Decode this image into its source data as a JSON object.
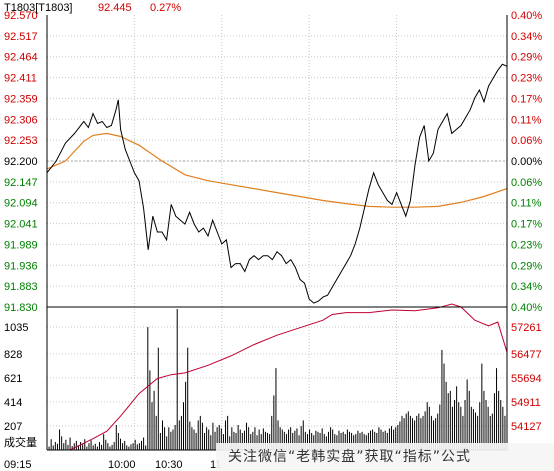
{
  "header": {
    "symbol": "T1803[T1803]",
    "last_price": "92.445",
    "change_pct": "0.27%"
  },
  "watermark": "关注微信“老韩实盘”获取“指标”公式",
  "colors": {
    "up": "#d00000",
    "down": "#008000",
    "neutral": "#000000",
    "price_line": "#000000",
    "avg_line": "#e08020",
    "oi_line": "#c00030",
    "volume_bar": "#000000",
    "grid": "#c8c8c8"
  },
  "chart_data": [
    {
      "type": "line",
      "panel": "price",
      "ylim": [
        91.83,
        92.57
      ],
      "y_ticks_left": [
        "92.570",
        "92.517",
        "92.464",
        "92.411",
        "92.359",
        "92.306",
        "92.253",
        "92.200",
        "92.147",
        "92.094",
        "92.041",
        "91.989",
        "91.936",
        "91.883",
        "91.830"
      ],
      "y_ticks_right": [
        "0.40%",
        "0.34%",
        "0.29%",
        "0.23%",
        "0.17%",
        "0.11%",
        "0.06%",
        "0.00%",
        "0.06%",
        "0.11%",
        "0.17%",
        "0.23%",
        "0.29%",
        "0.34%",
        "0.40%"
      ],
      "series": [
        {
          "label": "price",
          "x": [
            0,
            0.02,
            0.04,
            0.06,
            0.08,
            0.09,
            0.1,
            0.11,
            0.12,
            0.13,
            0.14,
            0.15,
            0.155,
            0.16,
            0.17,
            0.18,
            0.19,
            0.2,
            0.21,
            0.22,
            0.23,
            0.24,
            0.25,
            0.26,
            0.27,
            0.28,
            0.29,
            0.3,
            0.31,
            0.32,
            0.33,
            0.34,
            0.35,
            0.36,
            0.37,
            0.38,
            0.39,
            0.4,
            0.41,
            0.42,
            0.43,
            0.44,
            0.45,
            0.46,
            0.47,
            0.48,
            0.49,
            0.5,
            0.51,
            0.52,
            0.53,
            0.54,
            0.55,
            0.56,
            0.57,
            0.58,
            0.59,
            0.6,
            0.61,
            0.62,
            0.63,
            0.64,
            0.65,
            0.66,
            0.67,
            0.68,
            0.69,
            0.7,
            0.71,
            0.72,
            0.73,
            0.74,
            0.75,
            0.76,
            0.77,
            0.78,
            0.79,
            0.8,
            0.81,
            0.82,
            0.83,
            0.84,
            0.85,
            0.86,
            0.87,
            0.88,
            0.89,
            0.9,
            0.91,
            0.92,
            0.93,
            0.94,
            0.95,
            0.96,
            0.97,
            0.98,
            0.99,
            1.0
          ],
          "y": [
            92.17,
            92.2,
            92.245,
            92.27,
            92.3,
            92.285,
            92.32,
            92.295,
            92.3,
            92.285,
            92.29,
            92.33,
            92.355,
            92.28,
            92.23,
            92.2,
            92.17,
            92.15,
            92.08,
            91.975,
            92.06,
            92.02,
            92.02,
            92.0,
            92.09,
            92.06,
            92.05,
            92.04,
            92.07,
            92.04,
            92.02,
            92.03,
            92.01,
            92.05,
            92.02,
            91.99,
            92.0,
            91.93,
            91.94,
            91.94,
            91.92,
            91.95,
            91.96,
            91.95,
            91.96,
            91.96,
            91.95,
            91.97,
            91.96,
            91.94,
            91.95,
            91.93,
            91.9,
            91.89,
            91.85,
            91.84,
            91.845,
            91.855,
            91.86,
            91.88,
            91.9,
            91.92,
            91.94,
            91.96,
            91.99,
            92.03,
            92.08,
            92.13,
            92.17,
            92.14,
            92.12,
            92.1,
            92.09,
            92.12,
            92.09,
            92.06,
            92.1,
            92.19,
            92.26,
            92.29,
            92.2,
            92.22,
            92.28,
            92.3,
            92.32,
            92.27,
            92.28,
            92.29,
            92.31,
            92.33,
            92.36,
            92.38,
            92.35,
            92.39,
            92.41,
            92.43,
            92.445,
            92.44
          ]
        },
        {
          "label": "average",
          "x": [
            0,
            0.04,
            0.08,
            0.1,
            0.13,
            0.16,
            0.2,
            0.25,
            0.3,
            0.35,
            0.4,
            0.45,
            0.5,
            0.55,
            0.6,
            0.65,
            0.7,
            0.75,
            0.8,
            0.85,
            0.9,
            0.95,
            1.0
          ],
          "y": [
            92.18,
            92.2,
            92.25,
            92.265,
            92.27,
            92.262,
            92.24,
            92.2,
            92.165,
            92.15,
            92.14,
            92.13,
            92.12,
            92.11,
            92.1,
            92.092,
            92.085,
            92.083,
            92.083,
            92.085,
            92.095,
            92.11,
            92.13
          ]
        }
      ]
    },
    {
      "type": "bar",
      "panel": "volume",
      "ylim": [
        0,
        1240
      ],
      "y_ticks_left": [
        "1035",
        "828",
        "621",
        "414",
        "207",
        "成交量"
      ],
      "y_ticks_right": [
        "57261",
        "56477",
        "55694",
        "54911",
        "54127"
      ],
      "x_ticks": [
        "09:15",
        "10:00",
        "10:30",
        "11"
      ],
      "values": [
        30,
        95,
        40,
        70,
        55,
        180,
        120,
        60,
        90,
        45,
        110,
        35,
        60,
        80,
        40,
        70,
        50,
        95,
        30,
        60,
        85,
        40,
        55,
        30,
        70,
        45,
        140,
        90,
        60,
        30,
        45,
        70,
        220,
        150,
        100,
        60,
        80,
        40,
        30,
        50,
        60,
        90,
        50,
        60,
        80,
        110,
        40,
        1080,
        700,
        420,
        520,
        300,
        900,
        150,
        260,
        200,
        120,
        200,
        160,
        180,
        220,
        1240,
        260,
        300,
        420,
        600,
        900,
        250,
        200,
        180,
        150,
        260,
        300,
        240,
        150,
        200,
        180,
        130,
        240,
        160,
        200,
        220,
        190,
        140,
        260,
        300,
        120,
        200,
        160,
        150,
        220,
        180,
        150,
        170,
        240,
        200,
        140,
        160,
        200,
        130,
        180,
        140,
        190,
        160,
        150,
        140,
        300,
        480,
        720,
        260,
        200,
        180,
        160,
        140,
        180,
        200,
        150,
        170,
        190,
        130,
        210,
        260,
        160,
        140,
        180,
        150,
        130,
        170,
        160,
        150,
        190,
        140,
        120,
        160,
        200,
        180,
        140,
        130,
        170,
        150,
        160,
        140,
        180,
        160,
        150,
        130,
        140,
        170,
        150,
        160,
        140,
        130,
        150,
        170,
        180,
        160,
        150,
        200,
        180,
        160,
        170,
        150,
        190,
        210,
        180,
        200,
        220,
        250,
        300,
        280,
        320,
        340,
        300,
        280,
        260,
        300,
        320,
        280,
        300,
        340,
        420,
        380,
        300,
        260,
        280,
        320,
        400,
        880,
        760,
        600,
        500,
        520,
        380,
        440,
        560,
        420,
        380,
        300,
        440,
        620,
        520,
        380,
        360,
        330,
        300,
        420,
        760,
        520,
        440,
        380,
        300,
        320,
        500,
        720,
        520,
        440,
        380,
        300
      ]
    },
    {
      "type": "line",
      "panel": "open-interest",
      "ylim": [
        53900,
        57700
      ],
      "series": [
        {
          "label": "open-interest",
          "x": [
            0,
            0.05,
            0.1,
            0.13,
            0.16,
            0.2,
            0.24,
            0.27,
            0.3,
            0.35,
            0.4,
            0.45,
            0.5,
            0.55,
            0.6,
            0.62,
            0.65,
            0.7,
            0.75,
            0.8,
            0.85,
            0.88,
            0.9,
            0.93,
            0.96,
            0.98,
            1.0
          ],
          "y": [
            53900,
            53900,
            54200,
            54400,
            54800,
            55400,
            55800,
            55900,
            55950,
            56150,
            56400,
            56700,
            56950,
            57150,
            57350,
            57500,
            57550,
            57550,
            57620,
            57600,
            57680,
            57780,
            57700,
            57350,
            57200,
            57300,
            56500
          ]
        }
      ]
    }
  ]
}
